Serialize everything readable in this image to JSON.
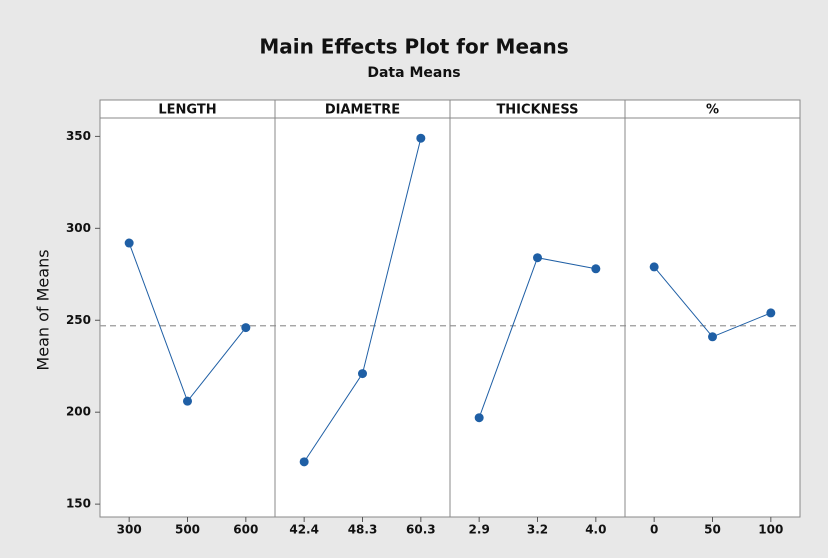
{
  "chart_data": {
    "type": "line",
    "title": "Main Effects Plot for Means",
    "subtitle": "Data Means",
    "ylabel": "Mean of Means",
    "color": "#1f5fa5",
    "reference_line": 247,
    "ylim": [
      143,
      360
    ],
    "yticks": [
      150,
      200,
      250,
      300,
      350
    ],
    "panels": [
      {
        "name": "LENGTH",
        "categories": [
          "300",
          "500",
          "600"
        ],
        "values": [
          292,
          206,
          246
        ]
      },
      {
        "name": "DIAMETRE",
        "categories": [
          "42.4",
          "48.3",
          "60.3"
        ],
        "values": [
          173,
          221,
          349
        ]
      },
      {
        "name": "THICKNESS",
        "categories": [
          "2.9",
          "3.2",
          "4.0"
        ],
        "values": [
          197,
          284,
          278
        ]
      },
      {
        "name": "%",
        "categories": [
          "0",
          "50",
          "100"
        ],
        "values": [
          279,
          241,
          254
        ]
      }
    ]
  }
}
